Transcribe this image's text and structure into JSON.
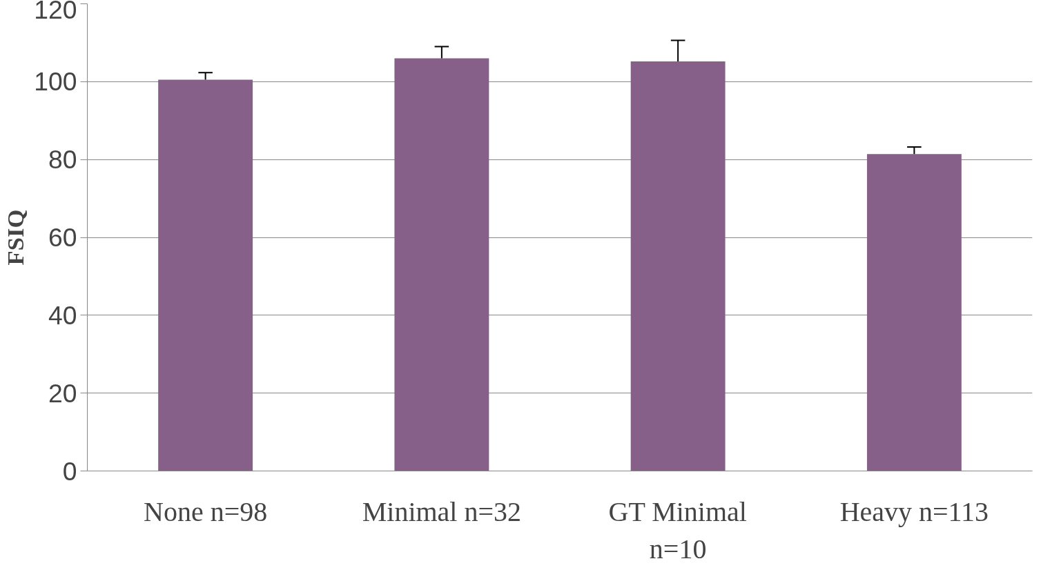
{
  "chart_data": {
    "type": "bar",
    "ylabel": "FSIQ",
    "categories": [
      "None n=98",
      "Minimal n=32",
      "GT Minimal n=10",
      "Heavy n=113"
    ],
    "values": [
      100.5,
      106,
      105.2,
      81.4
    ],
    "errors": [
      [
        100.5,
        102.3
      ],
      [
        106,
        109
      ],
      [
        105.2,
        110.6
      ],
      [
        81.4,
        83.2
      ]
    ],
    "color": "#87608a",
    "ylim": [
      0,
      120
    ],
    "yticks": [
      0,
      20,
      40,
      60,
      80,
      100,
      120
    ],
    "grid": "y"
  }
}
